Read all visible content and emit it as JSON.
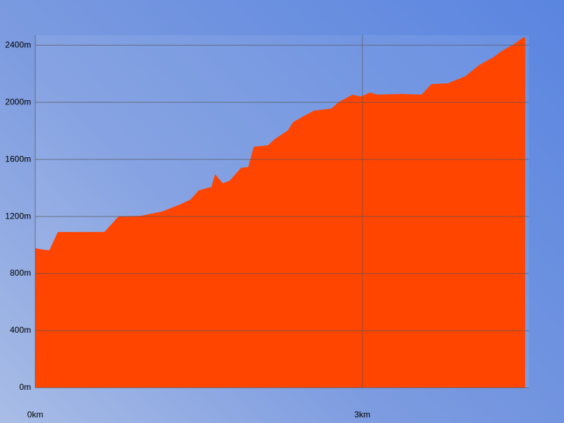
{
  "chart_data": {
    "type": "area",
    "color": "#ff4500",
    "grid": true,
    "x": [
      0,
      0.065,
      0.129,
      0.207,
      0.634,
      0.763,
      0.97,
      1.164,
      1.325,
      1.422,
      1.5,
      1.616,
      1.649,
      1.72,
      1.784,
      1.888,
      1.953,
      2.004,
      2.134,
      2.198,
      2.315,
      2.366,
      2.457,
      2.554,
      2.715,
      2.78,
      2.909,
      2.987,
      3.071,
      3.135,
      3.362,
      3.543,
      3.633,
      3.782,
      3.944,
      4.073,
      4.202,
      4.28,
      4.396,
      4.474,
      4.493
    ],
    "values": [
      978,
      968,
      963,
      1091,
      1091,
      1200,
      1205,
      1235,
      1284,
      1318,
      1383,
      1407,
      1496,
      1432,
      1452,
      1541,
      1546,
      1689,
      1699,
      1743,
      1802,
      1862,
      1901,
      1941,
      1956,
      2000,
      2054,
      2040,
      2069,
      2054,
      2059,
      2054,
      2128,
      2133,
      2183,
      2262,
      2316,
      2360,
      2410,
      2454,
      2454
    ],
    "xlim": [
      0,
      4.526
    ],
    "ylim": [
      0,
      2470
    ],
    "xticks": [
      {
        "value": 0,
        "label": "0km"
      },
      {
        "value": 3,
        "label": "3km"
      }
    ],
    "yticks": [
      {
        "value": 0,
        "label": "0m"
      },
      {
        "value": 400,
        "label": "400m"
      },
      {
        "value": 800,
        "label": "800m"
      },
      {
        "value": 1200,
        "label": "1200m"
      },
      {
        "value": 1600,
        "label": "1600m"
      },
      {
        "value": 2000,
        "label": "2000m"
      },
      {
        "value": 2400,
        "label": "2400m"
      }
    ]
  }
}
